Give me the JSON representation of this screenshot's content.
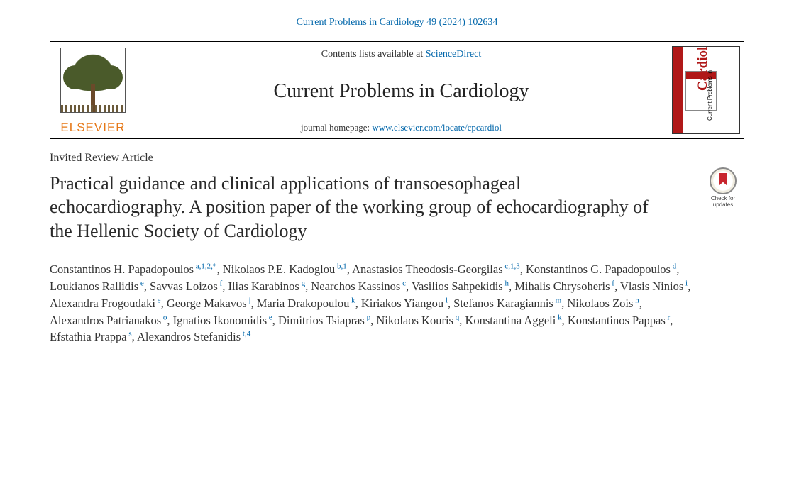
{
  "journal_reference": "Current Problems in Cardiology 49 (2024) 102634",
  "header": {
    "publisher_name": "ELSEVIER",
    "contents_prefix": "Contents lists available at ",
    "contents_link_text": "ScienceDirect",
    "journal_name": "Current Problems in Cardiology",
    "homepage_prefix": "journal homepage: ",
    "homepage_url": "www.elsevier.com/locate/cpcardiol",
    "cover_title": "Cardiology",
    "cover_subtitle": "Current Problems in"
  },
  "article_type": "Invited Review Article",
  "check_updates_label": "Check for updates",
  "title": "Practical guidance and clinical applications of transoesophageal echocardiography. A position paper of the working group of echocardiography of the Hellenic Society of Cardiology",
  "authors": [
    {
      "name": "Constantinos H. Papadopoulos",
      "affil": "a,1,2,*"
    },
    {
      "name": "Nikolaos P.E. Kadoglou",
      "affil": "b,1"
    },
    {
      "name": "Anastasios Theodosis-Georgilas",
      "affil": "c,1,3"
    },
    {
      "name": "Konstantinos G. Papadopoulos",
      "affil": "d"
    },
    {
      "name": "Loukianos Rallidis",
      "affil": "e"
    },
    {
      "name": "Savvas Loizos",
      "affil": "f"
    },
    {
      "name": "Ilias Karabinos",
      "affil": "g"
    },
    {
      "name": "Nearchos Kassinos",
      "affil": "c"
    },
    {
      "name": "Vasilios Sahpekidis",
      "affil": "h"
    },
    {
      "name": "Mihalis Chrysoheris",
      "affil": "f"
    },
    {
      "name": "Vlasis Ninios",
      "affil": "i"
    },
    {
      "name": "Alexandra Frogoudaki",
      "affil": "e"
    },
    {
      "name": "George Makavos",
      "affil": "j"
    },
    {
      "name": "Maria Drakopoulou",
      "affil": "k"
    },
    {
      "name": "Kiriakos Yiangou",
      "affil": "l"
    },
    {
      "name": "Stefanos Karagiannis",
      "affil": "m"
    },
    {
      "name": "Nikolaos Zois",
      "affil": "n"
    },
    {
      "name": "Alexandros Patrianakos",
      "affil": "o"
    },
    {
      "name": "Ignatios Ikonomidis",
      "affil": "e"
    },
    {
      "name": "Dimitrios Tsiapras",
      "affil": "p"
    },
    {
      "name": "Nikolaos Kouris",
      "affil": "q"
    },
    {
      "name": "Konstantina Aggeli",
      "affil": "k"
    },
    {
      "name": "Konstantinos Pappas",
      "affil": "r"
    },
    {
      "name": "Efstathia Prappa",
      "affil": "s"
    },
    {
      "name": "Alexandros Stefanidis",
      "affil": "t,4"
    }
  ],
  "colors": {
    "link": "#0066aa",
    "publisher": "#e67817",
    "accent_red": "#b01818",
    "text": "#333333",
    "border": "#000000"
  }
}
